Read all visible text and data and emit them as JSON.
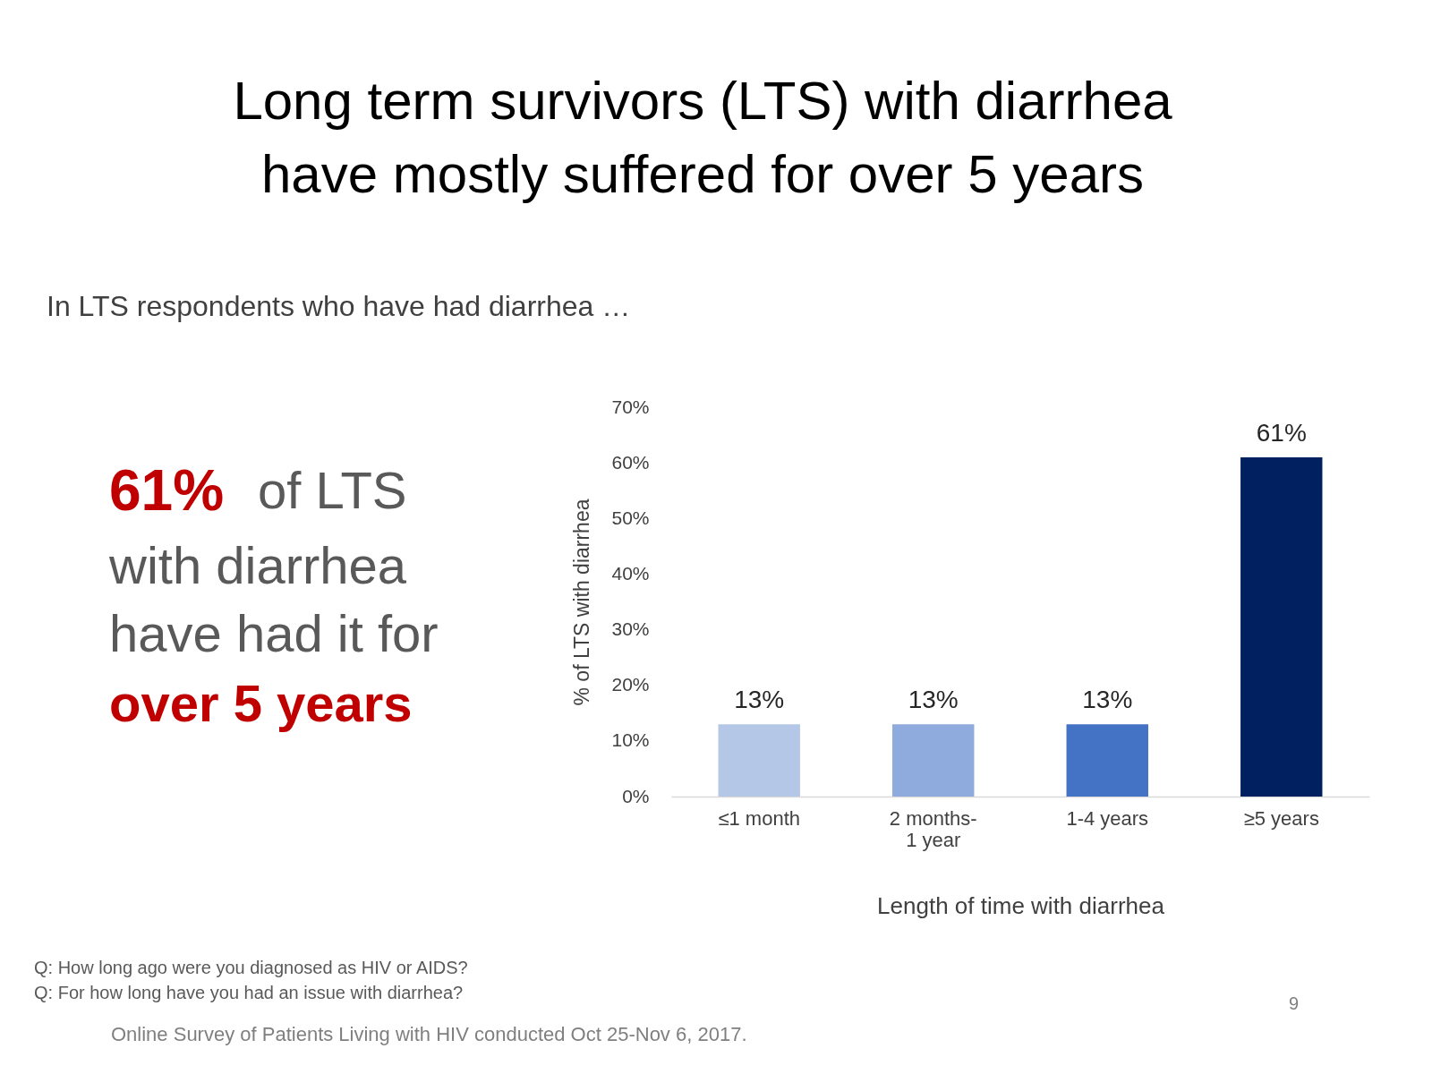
{
  "chart_data": {
    "type": "bar",
    "title": "Long term survivors (LTS) with diarrhea have mostly suffered for over 5 years",
    "subtitle": "In LTS respondents who have had diarrhea …",
    "xlabel": "Length of time with diarrhea",
    "ylabel": "% of LTS with diarrhea",
    "categories": [
      "≤1 month",
      "2 months-1 year",
      "1-4 years",
      "≥5 years"
    ],
    "values": [
      13,
      13,
      13,
      61
    ],
    "value_labels": [
      "13%",
      "13%",
      "13%",
      "61%"
    ],
    "colors": [
      "#b4c7e7",
      "#8faadc",
      "#4472c4",
      "#002060"
    ],
    "ylim": [
      0,
      70
    ],
    "yticks": [
      {
        "value": 0,
        "label": "0%"
      },
      {
        "value": 10,
        "label": "10%"
      },
      {
        "value": 20,
        "label": "20%"
      },
      {
        "value": 30,
        "label": "30%"
      },
      {
        "value": 40,
        "label": "40%"
      },
      {
        "value": 50,
        "label": "50%"
      },
      {
        "value": 60,
        "label": "60%"
      },
      {
        "value": 70,
        "label": "70%"
      }
    ],
    "grid": false,
    "annotations": [
      "61%",
      "of LTS",
      "with diarrhea",
      "have had it for",
      "over 5 years",
      "Q: How long ago were you diagnosed as HIV or AIDS?",
      "Q: For how long have you had an issue with diarrhea?",
      "Online Survey of Patients Living with HIV conducted Oct 25-Nov 6, 2017.",
      "9"
    ]
  }
}
